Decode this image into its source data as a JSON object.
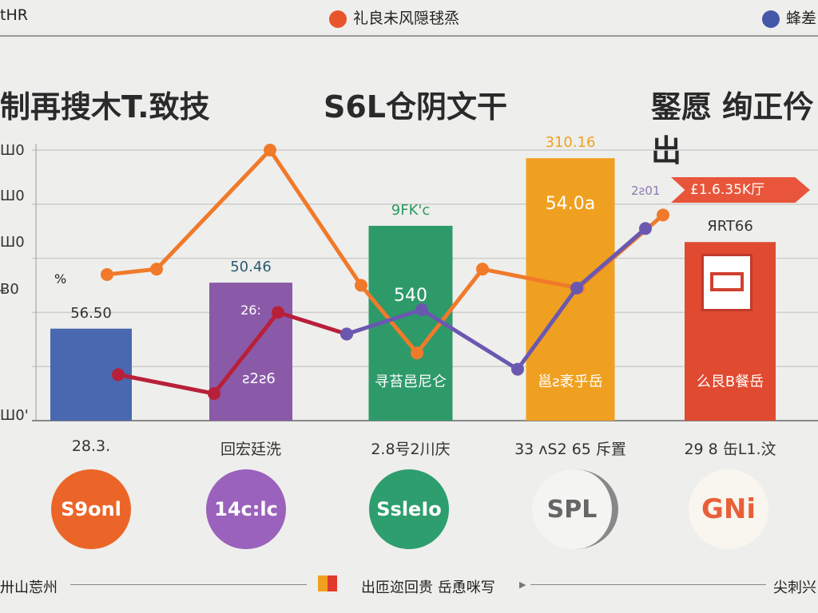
{
  "legend": {
    "left": "tHR",
    "orange": "礼良未风隠毬烝",
    "blue": "蜂差",
    "orange_color": "#e8552c",
    "blue_color": "#4457a8"
  },
  "titles": [
    "制再搜木T.致技",
    "S6L仓阴文干",
    "鋻愿 绚正仱出"
  ],
  "chart_data": {
    "type": "bar",
    "title": "",
    "xlabel": "",
    "ylabel": "",
    "ylim": [
      0,
      100
    ],
    "grid": true,
    "y_tick_labels": [
      "Ш0",
      "Ш0",
      "Ш0",
      "Ƀ0",
      "Ш0'"
    ],
    "categories": [
      "28.3.",
      "回宏廷洗",
      "2.8号2川庆",
      "33 ʌS2 65 斥置",
      "29 8 缶L1.汶"
    ],
    "values": [
      34,
      51,
      72,
      97,
      66
    ],
    "bar_colors": [
      "#4a68b0",
      "#8a5aa8",
      "#2e9a6a",
      "#f0a020",
      "#e04a30"
    ],
    "bar_top_labels": [
      "56.50",
      "50.46",
      "9FK'c",
      "310.16",
      "ЯRT66"
    ],
    "bar_inner_labels": [
      [
        "",
        ""
      ],
      [
        "26:",
        "ƨ2ƨ6"
      ],
      [
        "540",
        "寻苔邑尼仑"
      ],
      [
        "54.0a",
        "邕ƨ袤乎岳"
      ],
      [
        "",
        "么艮B餐岳"
      ]
    ],
    "lines": [
      {
        "color": "#f07a2a",
        "points": [
          [
            1.1,
            54
          ],
          [
            1.41,
            56
          ],
          [
            2.12,
            100
          ],
          [
            2.69,
            50
          ],
          [
            3.04,
            25
          ],
          [
            3.45,
            56
          ],
          [
            4.05,
            49
          ],
          [
            4.58,
            76
          ]
        ]
      },
      {
        "color": "#b8203a",
        "points": [
          [
            1.17,
            17
          ],
          [
            1.77,
            10
          ],
          [
            2.17,
            40
          ],
          [
            2.6,
            32
          ]
        ]
      },
      {
        "color": "#6a58b0",
        "points": [
          [
            2.6,
            32
          ],
          [
            3.07,
            41
          ],
          [
            3.67,
            19
          ],
          [
            4.04,
            49
          ],
          [
            4.47,
            71
          ]
        ]
      }
    ],
    "annotations": {
      "percent": "%",
      "arrow_small": "2ƨ01",
      "arrow_label": "£1.6.35K厅"
    }
  },
  "badges": [
    "S9onl",
    "14c:lc",
    "SsleIo",
    "SPL",
    "GNi"
  ],
  "badge_colors": [
    "#ec6528",
    "#9a62bc",
    "#2e9e6e",
    "#f4f4f2",
    "#f8f6ee"
  ],
  "footer": {
    "left": "卅山莣州",
    "center": "出匝迩回贵 岳恿咪写",
    "right": "尖刺兴"
  }
}
